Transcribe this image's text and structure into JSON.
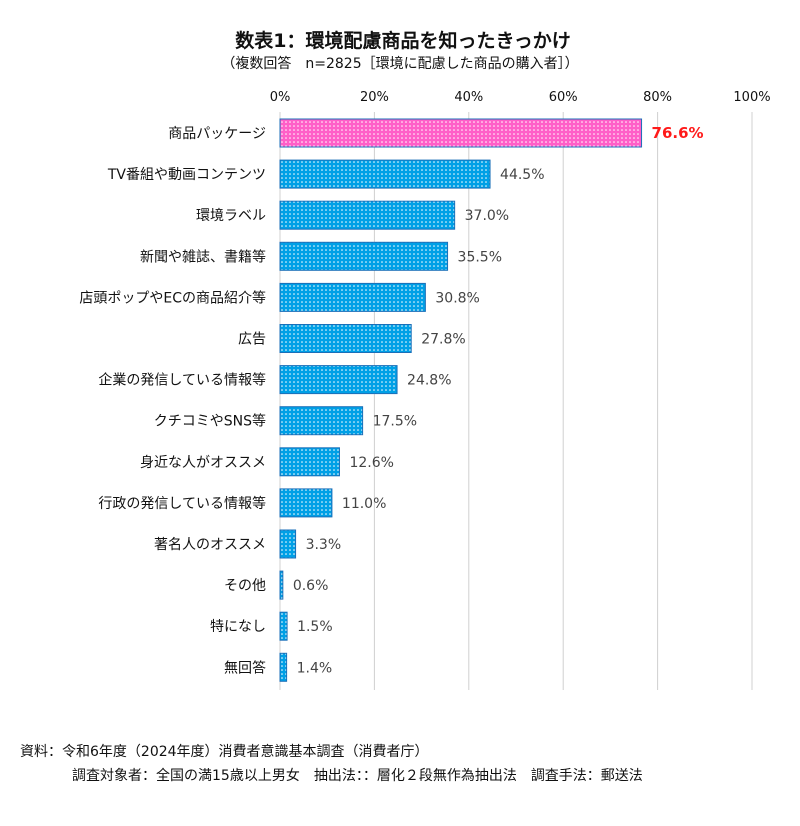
{
  "chart_data": {
    "type": "bar",
    "orientation": "horizontal",
    "title": "数表1：環境配慮商品を知ったきっかけ",
    "subtitle": "（複数回答　n=2825［環境に配慮した商品の購入者］）",
    "categories": [
      "商品パッケージ",
      "TV番組や動画コンテンツ",
      "環境ラベル",
      "新聞や雑誌、書籍等",
      "店頭ポップやECの商品紹介等",
      "広告",
      "企業の発信している情報等",
      "クチコミやSNS等",
      "身近な人がオススメ",
      "行政の発信している情報等",
      "著名人のオススメ",
      "その他",
      "特になし",
      "無回答"
    ],
    "values": [
      76.6,
      44.5,
      37.0,
      35.5,
      30.8,
      27.8,
      24.8,
      17.5,
      12.6,
      11.0,
      3.3,
      0.6,
      1.5,
      1.4
    ],
    "data_labels": [
      "76.6%",
      "44.5%",
      "37.0%",
      "35.5%",
      "30.8%",
      "27.8%",
      "24.8%",
      "17.5%",
      "12.6%",
      "11.0%",
      "3.3%",
      "0.6%",
      "1.5%",
      "1.4%"
    ],
    "xlim": [
      0,
      100
    ],
    "x_ticks": [
      "0%",
      "20%",
      "40%",
      "60%",
      "80%",
      "100%"
    ],
    "x_tick_values": [
      0,
      20,
      40,
      60,
      80,
      100
    ],
    "xaxis_position": "top",
    "grid": true,
    "highlight_index": 0,
    "colors": {
      "bar": "#00a0e6",
      "highlight": "#ff5fc8",
      "bar_border": "#1b6fb8",
      "highlight_label": "#ff1a1a",
      "label": "#444444",
      "grid": "#d0d0d0"
    }
  },
  "source": {
    "line1": "資料：令和6年度（2024年度）消費者意識基本調査（消費者庁）",
    "line2": "調査対象者：全国の満15歳以上男女　抽出法：：層化２段無作為抽出法　調査手法：郵送法"
  }
}
